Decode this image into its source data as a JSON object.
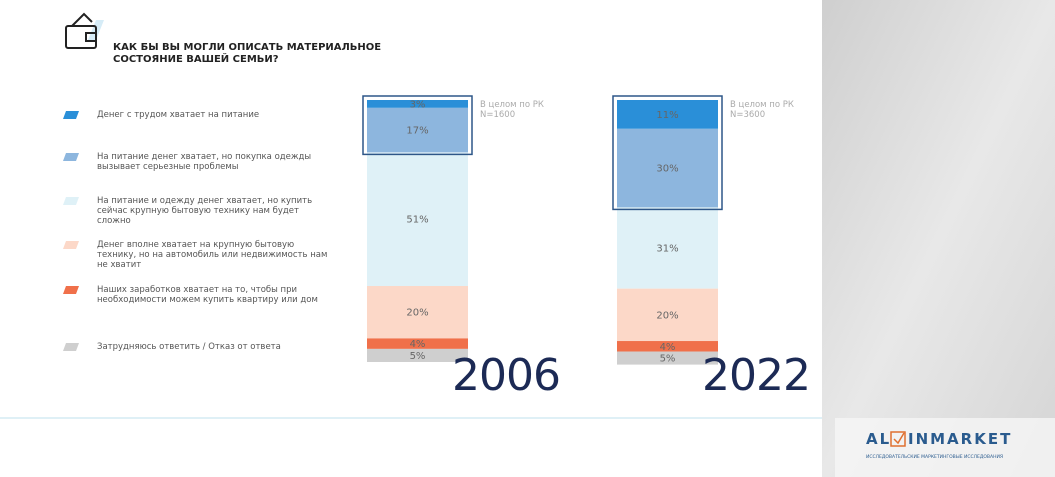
{
  "chart_data": {
    "type": "bar",
    "stacked": true,
    "title": "КАК БЫ ВЫ МОГЛИ ОПИСАТЬ МАТЕРИАЛЬНОЕ СОСТОЯНИЕ ВАШЕЙ СЕМЬИ?",
    "categories": [
      "2006",
      "2022"
    ],
    "notes": [
      "В целом по РК N=1600",
      "В целом по РК N=3600"
    ],
    "series": [
      {
        "name": "Денег с трудом хватает на питание",
        "color": "#2a8fd8",
        "values": [
          3,
          11
        ],
        "value_labels": [
          "3%",
          "11%"
        ]
      },
      {
        "name": "На питание денег хватает, но покупка одежды вызывает серьезные проблемы",
        "color": "#8db6de",
        "values": [
          17,
          30
        ],
        "value_labels": [
          "17%",
          "30%"
        ]
      },
      {
        "name": "На питание и одежду денег хватает, но купить сейчас крупную бытовую технику нам будет сложно",
        "color": "#dff1f7",
        "values": [
          51,
          31
        ],
        "value_labels": [
          "51%",
          "31%"
        ]
      },
      {
        "name": "Денег вполне хватает на крупную бытовую технику, но на автомобиль или недвижимость нам не хватит",
        "color": "#fcd8c8",
        "values": [
          20,
          20
        ],
        "value_labels": [
          "20%",
          "20%"
        ]
      },
      {
        "name": "Наших заработков хватает на то, чтобы при необходимости можем купить квартиру или дом",
        "color": "#f0704a",
        "values": [
          4,
          4
        ],
        "value_labels": [
          "4%",
          "4%"
        ]
      },
      {
        "name": "Затрудняюсь ответить / Отказ от ответа",
        "color": "#cfcfcf",
        "values": [
          5,
          5
        ],
        "value_labels": [
          "5%",
          "5%"
        ]
      }
    ]
  },
  "logo": {
    "left": "AL",
    "right": "INMARKET",
    "tagline": "ИССЛЕДОВАТЕЛЬСКИЕ МАРКЕТИНГОВЫЕ ИССЛЕДОВАНИЯ"
  }
}
